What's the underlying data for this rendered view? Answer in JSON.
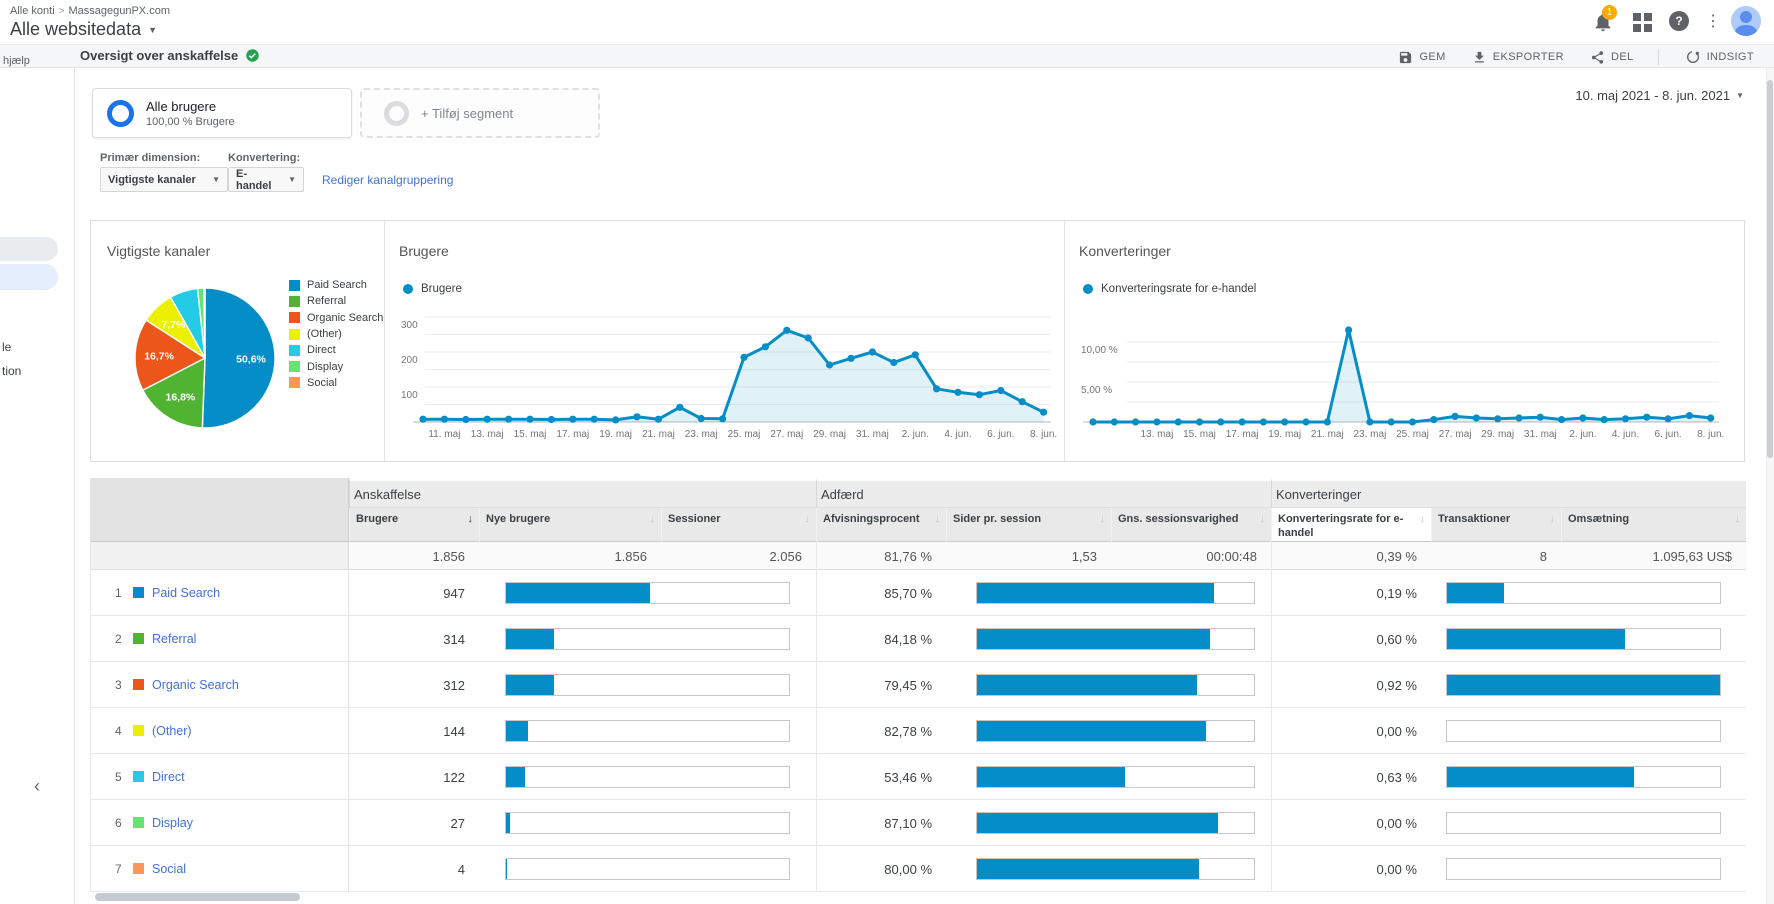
{
  "header": {
    "breadcrumb": [
      "Alle konti",
      "MassagegunPX.com"
    ],
    "breadcrumb_separator": ">",
    "property_title": "Alle websitedata",
    "notification_badge": "1"
  },
  "toolbar": {
    "title": "Oversigt over anskaffelse",
    "save_label": "GEM",
    "export_label": "EKSPORTER",
    "share_label": "DEL",
    "insight_label": "INDSIGT"
  },
  "sidebar": {
    "search_hint": "hjælp",
    "clipped_items": [
      "le",
      "tion"
    ],
    "collapse_glyph": "‹"
  },
  "segments": {
    "active": {
      "name": "Alle brugere",
      "detail": "100,00 % Brugere"
    },
    "add_label": "+ Tilføj segment"
  },
  "date_range": "10. maj 2021 - 8. jun. 2021",
  "controls": {
    "primary_dimension_label": "Primær dimension:",
    "primary_dimension_value": "Vigtigste kanaler",
    "conversion_label": "Konvertering:",
    "conversion_value": "E-handel",
    "edit_channel_grouping": "Rediger kanalgruppering"
  },
  "chart_data": [
    {
      "type": "pie",
      "title": "Vigtigste kanaler",
      "legend_position": "right",
      "labels": [
        "Paid Search",
        "Referral",
        "Organic Search",
        "(Other)",
        "Direct",
        "Display",
        "Social"
      ],
      "values": [
        50.6,
        16.8,
        16.7,
        7.7,
        6.5,
        1.4,
        0.3
      ],
      "slice_labels": [
        "50,6%",
        "16,8%",
        "16,7%",
        "7,7%",
        "",
        "",
        ""
      ],
      "colors": [
        "#058DC7",
        "#50B432",
        "#ED561B",
        "#EDEF00",
        "#24CBE5",
        "#64E572",
        "#FF9655"
      ]
    },
    {
      "type": "area",
      "title": "Brugere",
      "legend": [
        "Brugere"
      ],
      "color": "#058DC7",
      "x": [
        "10. maj",
        "11. maj",
        "12. maj",
        "13. maj",
        "14. maj",
        "15. maj",
        "16. maj",
        "17. maj",
        "18. maj",
        "19. maj",
        "20. maj",
        "21. maj",
        "22. maj",
        "23. maj",
        "24. maj",
        "25. maj",
        "26. maj",
        "27. maj",
        "28. maj",
        "29. maj",
        "30. maj",
        "31. maj",
        "1. jun.",
        "2. jun.",
        "3. jun.",
        "4. jun.",
        "5. jun.",
        "6. jun.",
        "7. jun.",
        "8. jun."
      ],
      "values": [
        8,
        8,
        7,
        8,
        8,
        8,
        7,
        8,
        8,
        6,
        15,
        8,
        42,
        10,
        9,
        185,
        215,
        262,
        240,
        163,
        182,
        200,
        170,
        192,
        95,
        85,
        78,
        90,
        58,
        28
      ],
      "ylim": [
        0,
        320
      ],
      "yticks": [
        100,
        200,
        300
      ],
      "ytick_labels": [
        "100",
        "200",
        "300"
      ],
      "gridlines": [
        50,
        100,
        150,
        200,
        250,
        300
      ],
      "xtick_indices": [
        1,
        3,
        5,
        7,
        9,
        11,
        13,
        15,
        17,
        19,
        21,
        23,
        25,
        27,
        29
      ],
      "grid": true
    },
    {
      "type": "area",
      "title": "Konverteringer",
      "legend": [
        "Konverteringsrate for e-handel"
      ],
      "color": "#058DC7",
      "x": [
        "10. maj",
        "11. maj",
        "12. maj",
        "13. maj",
        "14. maj",
        "15. maj",
        "16. maj",
        "17. maj",
        "18. maj",
        "19. maj",
        "20. maj",
        "21. maj",
        "22. maj",
        "23. maj",
        "24. maj",
        "25. maj",
        "26. maj",
        "27. maj",
        "28. maj",
        "29. maj",
        "30. maj",
        "31. maj",
        "1. jun.",
        "2. jun.",
        "3. jun.",
        "4. jun.",
        "5. jun.",
        "6. jun.",
        "7. jun.",
        "8. jun."
      ],
      "values": [
        0,
        0,
        0,
        0,
        0,
        0,
        0,
        0,
        0,
        0,
        0,
        0,
        11.5,
        0,
        0,
        0,
        0.3,
        0.7,
        0.5,
        0.4,
        0.5,
        0.6,
        0.3,
        0.5,
        0.3,
        0.4,
        0.6,
        0.4,
        0.8,
        0.5
      ],
      "ylim": [
        0,
        12.5
      ],
      "yticks": [
        5,
        10
      ],
      "ytick_labels": [
        "5,00 %",
        "10,00 %"
      ],
      "gridlines": [
        2.5,
        5,
        7.5,
        10
      ],
      "xtick_indices": [
        3,
        5,
        7,
        9,
        11,
        13,
        15,
        17,
        19,
        21,
        23,
        25,
        27,
        29
      ],
      "grid": true
    }
  ],
  "table": {
    "groups": [
      {
        "label": "Anskaffelse",
        "span": 3
      },
      {
        "label": "Adfærd",
        "span": 3
      },
      {
        "label": "Konverteringer",
        "span": 3
      }
    ],
    "columns": [
      "Brugere",
      "Nye brugere",
      "Sessioner",
      "Afvisningsprocent",
      "Sider pr. session",
      "Gns. sessionsvarighed",
      "Konverteringsrate for e-handel",
      "Transaktioner",
      "Omsætning"
    ],
    "sorted_column": "Brugere",
    "selected_column": "Konverteringsrate for e-handel",
    "totals": [
      "1.856",
      "1.856",
      "2.056",
      "81,76 %",
      "1,53",
      "00:00:48",
      "0,39 %",
      "8",
      "1.095,63 US$"
    ],
    "rows": [
      {
        "rank": "1",
        "channel": "Paid Search",
        "color": "#058DC7",
        "users": "947",
        "users_bar_pct": 51.0,
        "bounce_rate": "85,70 %",
        "bounce_bar_pct": 85.7,
        "conv_rate": "0,19 %",
        "conv_bar_pct": 20.7
      },
      {
        "rank": "2",
        "channel": "Referral",
        "color": "#50B432",
        "users": "314",
        "users_bar_pct": 16.9,
        "bounce_rate": "84,18 %",
        "bounce_bar_pct": 84.2,
        "conv_rate": "0,60 %",
        "conv_bar_pct": 65.2
      },
      {
        "rank": "3",
        "channel": "Organic Search",
        "color": "#ED561B",
        "users": "312",
        "users_bar_pct": 16.8,
        "bounce_rate": "79,45 %",
        "bounce_bar_pct": 79.5,
        "conv_rate": "0,92 %",
        "conv_bar_pct": 100
      },
      {
        "rank": "4",
        "channel": "(Other)",
        "color": "#EDEF00",
        "users": "144",
        "users_bar_pct": 7.8,
        "bounce_rate": "82,78 %",
        "bounce_bar_pct": 82.8,
        "conv_rate": "0,00 %",
        "conv_bar_pct": 0
      },
      {
        "rank": "5",
        "channel": "Direct",
        "color": "#24CBE5",
        "users": "122",
        "users_bar_pct": 6.6,
        "bounce_rate": "53,46 %",
        "bounce_bar_pct": 53.5,
        "conv_rate": "0,63 %",
        "conv_bar_pct": 68.5
      },
      {
        "rank": "6",
        "channel": "Display",
        "color": "#64E572",
        "users": "27",
        "users_bar_pct": 1.5,
        "bounce_rate": "87,10 %",
        "bounce_bar_pct": 87.1,
        "conv_rate": "0,00 %",
        "conv_bar_pct": 0
      },
      {
        "rank": "7",
        "channel": "Social",
        "color": "#FF9655",
        "users": "4",
        "users_bar_pct": 0.3,
        "bounce_rate": "80,00 %",
        "bounce_bar_pct": 80.0,
        "conv_rate": "0,00 %",
        "conv_bar_pct": 0
      }
    ]
  }
}
